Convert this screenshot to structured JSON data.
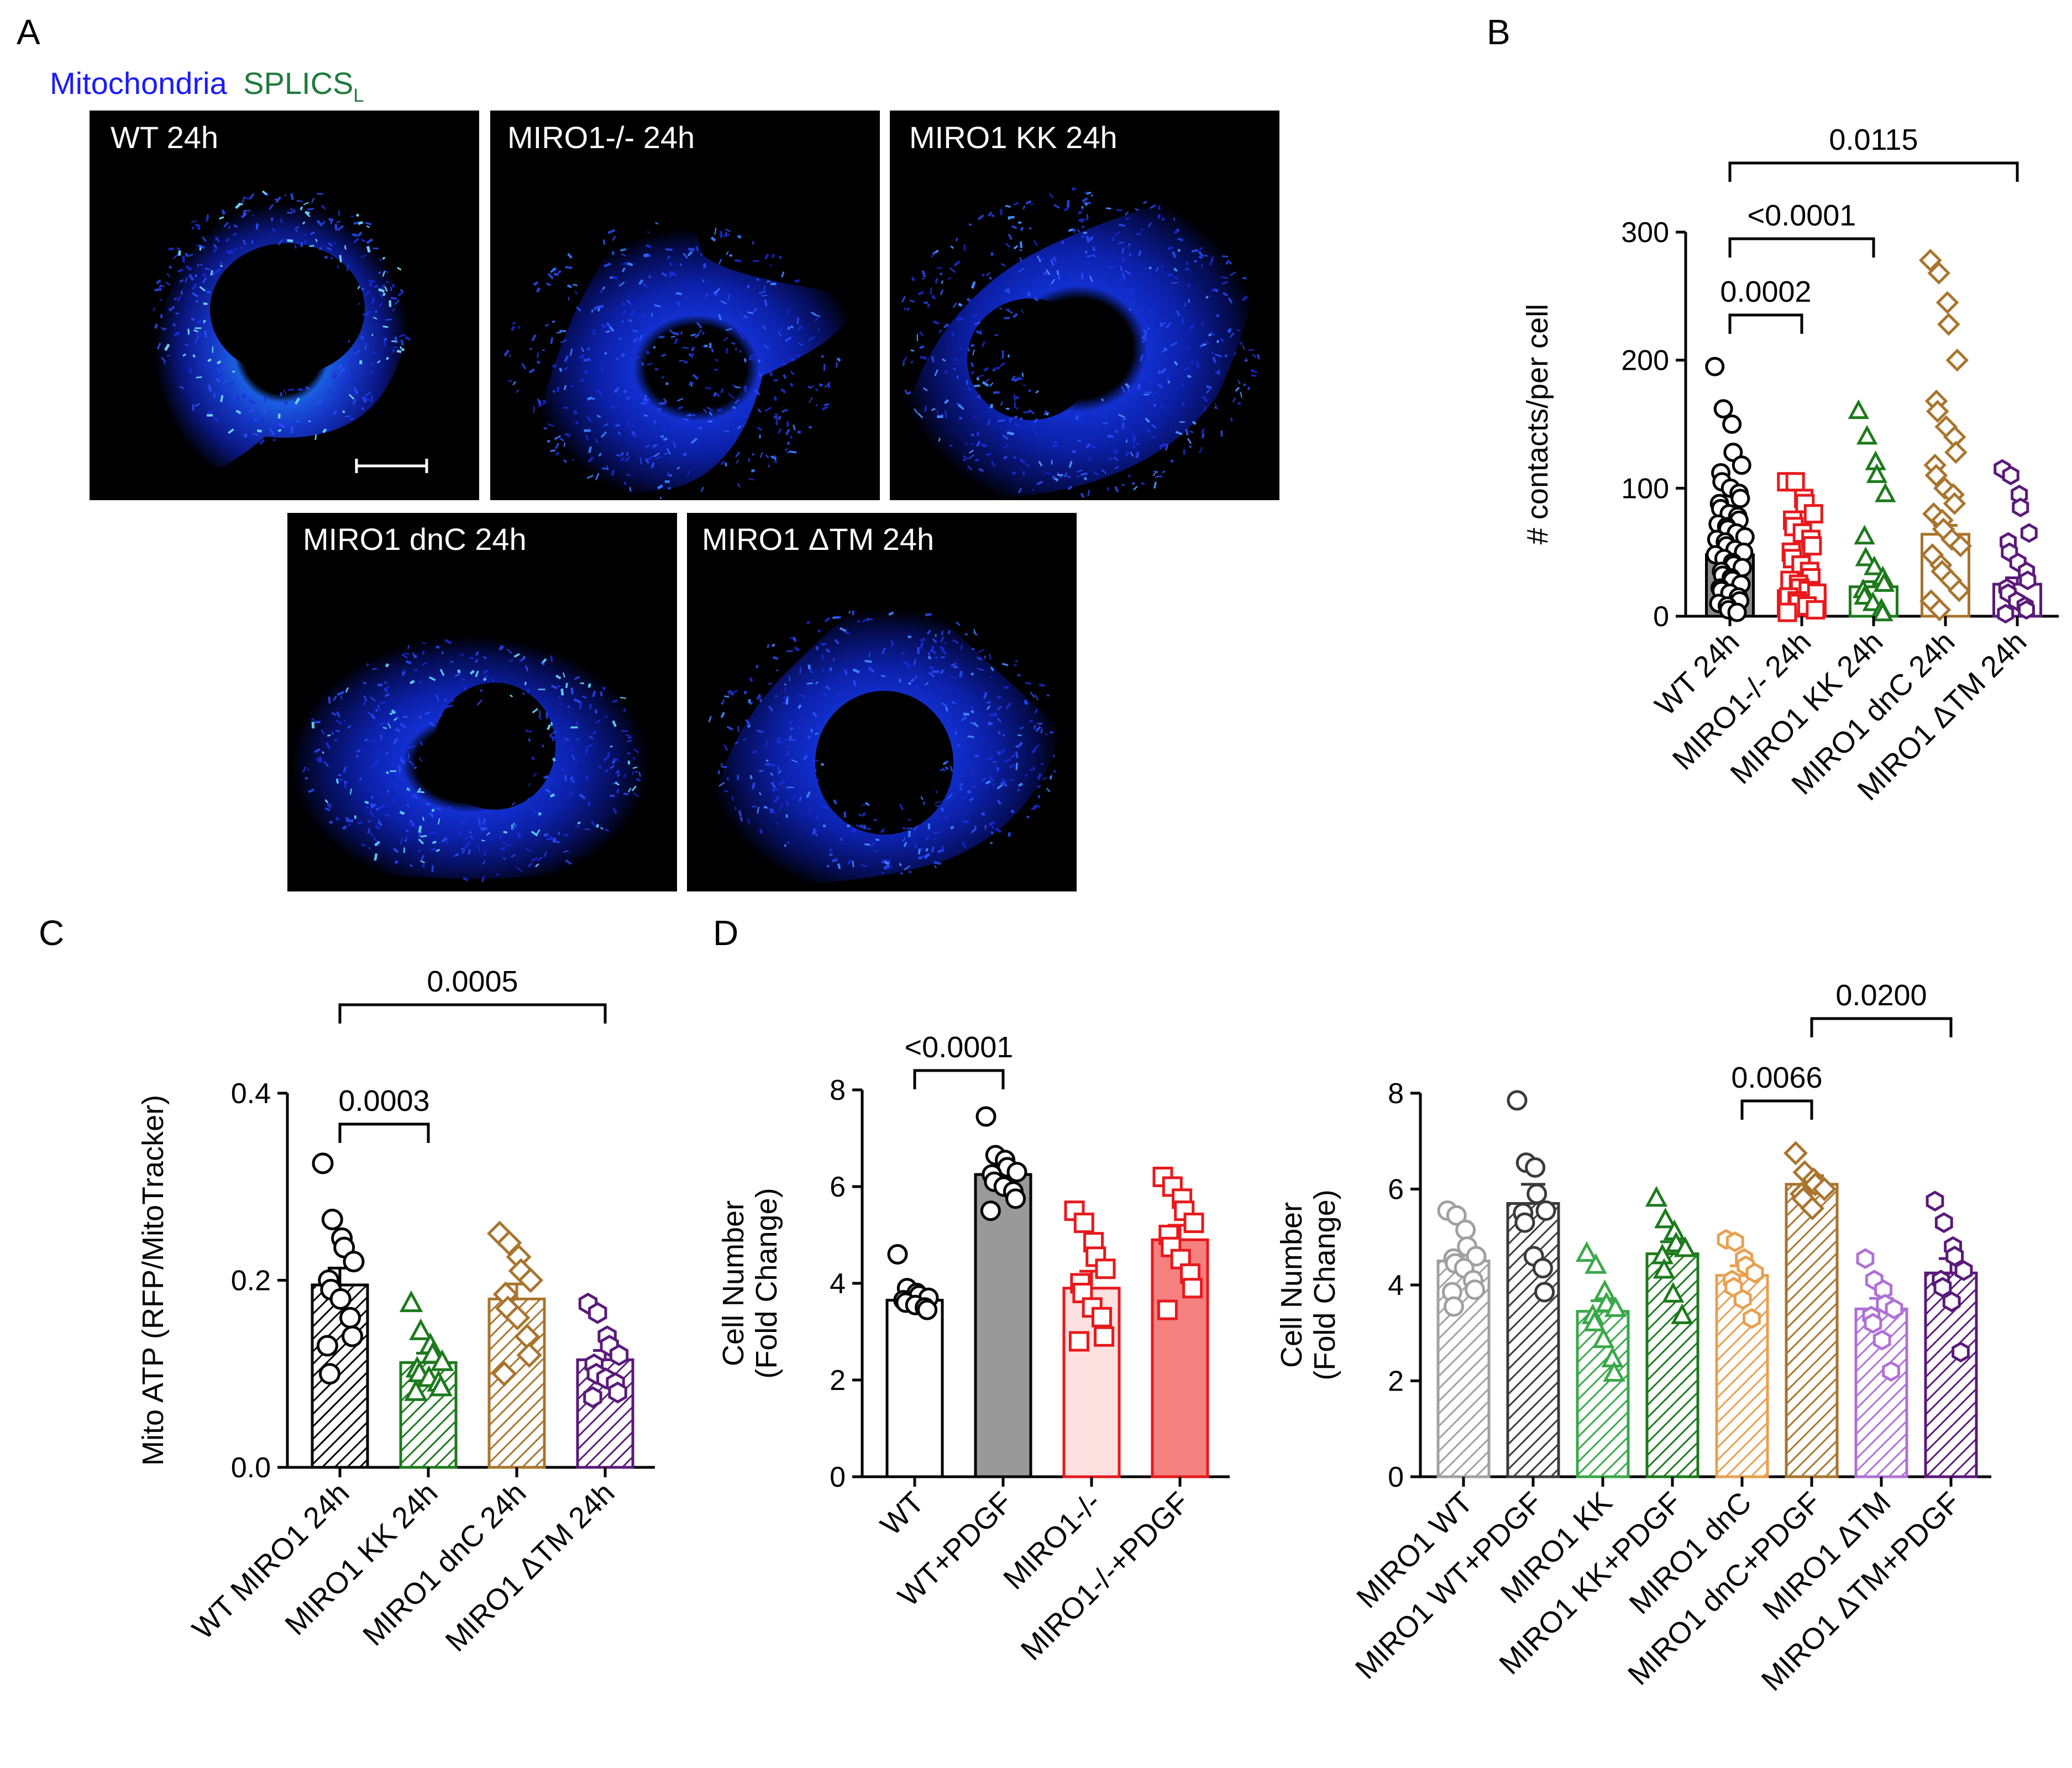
{
  "panel_labels": {
    "a": "A",
    "b": "B",
    "c": "C",
    "d": "D"
  },
  "panel_a": {
    "legend": {
      "mito": "Mitochondria",
      "splics": "SPLICS",
      "splics_sub": "L",
      "mito_color": "#1a1aff",
      "splics_color": "#1f7a3c"
    },
    "images": [
      {
        "label": "WT 24h"
      },
      {
        "label": "MIRO1-/- 24h"
      },
      {
        "label": "MIRO1 KK 24h"
      },
      {
        "label": "MIRO1 dnC 24h"
      },
      {
        "label": "MIRO1 ΔTM 24h"
      }
    ]
  },
  "chart_data": [
    {
      "id": "B",
      "type": "bar",
      "ylabel": "# contacts/per cell",
      "ylim": [
        0,
        300
      ],
      "yticks": [
        0,
        100,
        200,
        300
      ],
      "categories": [
        "WT 24h",
        "MIRO1-/- 24h",
        "MIRO1 KK 24h",
        "MIRO1 dnC 24h",
        "MIRO1 ΔTM 24h"
      ],
      "colors": [
        "#000000",
        "#e8191c",
        "#1d7a1d",
        "#a9742d",
        "#5a1a7a"
      ],
      "fills": [
        "#8a8a8a",
        "#ffffff",
        "#ffffff",
        "#ffffff",
        "#ffffff"
      ],
      "markers": [
        "circle",
        "square",
        "triangle",
        "diamond",
        "hexagon"
      ],
      "values": [
        48,
        20,
        23,
        64,
        25
      ],
      "errors": [
        4,
        3,
        4,
        7,
        5
      ],
      "points": [
        [
          195,
          162,
          150,
          128,
          118,
          112,
          105,
          100,
          96,
          92,
          88,
          84,
          80,
          78,
          75,
          72,
          70,
          68,
          65,
          62,
          60,
          58,
          55,
          52,
          50,
          48,
          45,
          42,
          40,
          38,
          35,
          32,
          30,
          28,
          25,
          22,
          20,
          18,
          15,
          12,
          10,
          8,
          5,
          3
        ],
        [
          105,
          105,
          92,
          88,
          80,
          75,
          70,
          65,
          60,
          55,
          50,
          45,
          40,
          35,
          30,
          28,
          25,
          22,
          20,
          18,
          15,
          12,
          10,
          8,
          5,
          3
        ],
        [
          160,
          140,
          120,
          110,
          95,
          62,
          45,
          38,
          30,
          25,
          20,
          15,
          10,
          5,
          2
        ],
        [
          278,
          268,
          245,
          228,
          200,
          168,
          160,
          148,
          140,
          128,
          118,
          110,
          100,
          95,
          88,
          80,
          75,
          68,
          60,
          55,
          48,
          40,
          35,
          28,
          20,
          12,
          5
        ],
        [
          115,
          110,
          95,
          85,
          65,
          58,
          50,
          42,
          35,
          28,
          22,
          18,
          12,
          8,
          5,
          2
        ]
      ],
      "comparisons": [
        {
          "from": 0,
          "to": 1,
          "label": "0.0002"
        },
        {
          "from": 0,
          "to": 2,
          "label": "<0.0001"
        },
        {
          "from": 0,
          "to": 4,
          "label": "0.0115"
        }
      ]
    },
    {
      "id": "C",
      "type": "bar",
      "ylabel": "Mito ATP (RFP/MitoTracker)",
      "ylim": [
        0,
        0.4
      ],
      "yticks": [
        "0.0",
        "0.2",
        "0.4"
      ],
      "categories": [
        "WT MIRO1 24h",
        "MIRO1 KK 24h",
        "MIRO1 dnC 24h",
        "MIRO1 ΔTM 24h"
      ],
      "colors": [
        "#000000",
        "#1d7a1d",
        "#a9742d",
        "#5a1a7a"
      ],
      "markers": [
        "circle",
        "triangle",
        "diamond",
        "hexagon"
      ],
      "values": [
        0.195,
        0.112,
        0.18,
        0.115
      ],
      "errors": [
        0.018,
        0.01,
        0.016,
        0.01
      ],
      "points": [
        [
          0.325,
          0.265,
          0.245,
          0.235,
          0.22,
          0.2,
          0.19,
          0.18,
          0.16,
          0.14,
          0.13,
          0.1
        ],
        [
          0.175,
          0.145,
          0.13,
          0.12,
          0.112,
          0.105,
          0.1,
          0.095,
          0.09,
          0.085,
          0.08
        ],
        [
          0.25,
          0.24,
          0.225,
          0.21,
          0.2,
          0.185,
          0.17,
          0.16,
          0.14,
          0.12,
          0.1
        ],
        [
          0.175,
          0.165,
          0.14,
          0.13,
          0.12,
          0.11,
          0.1,
          0.095,
          0.09,
          0.08,
          0.075
        ]
      ],
      "comparisons": [
        {
          "from": 0,
          "to": 1,
          "label": "0.0003"
        },
        {
          "from": 0,
          "to": 3,
          "label": "0.0005"
        }
      ]
    },
    {
      "id": "D1",
      "type": "bar",
      "ylabel": "Cell Number",
      "ylabel2": "(Fold Change)",
      "ylim": [
        0,
        8
      ],
      "yticks": [
        0,
        2,
        4,
        6,
        8
      ],
      "categories": [
        "WT",
        "WT+PDGF",
        "MIRO1-/-",
        "MIRO1-/-+PDGF"
      ],
      "colors": [
        "#000000",
        "#000000",
        "#e8191c",
        "#e8191c"
      ],
      "fills": [
        "#ffffff",
        "#999999",
        "#fde0e0",
        "#f58080"
      ],
      "markers": [
        "circle",
        "circle",
        "square",
        "square"
      ],
      "values": [
        3.65,
        6.25,
        3.9,
        4.9
      ],
      "errors": [
        0.1,
        0.2,
        0.35,
        0.3
      ],
      "points": [
        [
          4.6,
          3.9,
          3.8,
          3.75,
          3.7,
          3.65,
          3.6,
          3.55,
          3.5,
          3.45
        ],
        [
          7.45,
          6.65,
          6.55,
          6.4,
          6.3,
          6.25,
          6.1,
          6.0,
          5.9,
          5.75,
          5.5
        ],
        [
          5.5,
          5.25,
          4.85,
          4.55,
          4.3,
          4.0,
          3.8,
          3.5,
          3.3,
          2.9,
          2.8
        ],
        [
          6.2,
          6.0,
          5.75,
          5.5,
          5.25,
          5.0,
          4.75,
          4.5,
          4.2,
          3.9,
          3.45
        ]
      ],
      "comparisons": [
        {
          "from": 0,
          "to": 1,
          "label": "<0.0001"
        }
      ]
    },
    {
      "id": "D2",
      "type": "bar",
      "ylabel": "Cell Number",
      "ylabel2": "(Fold Change)",
      "ylim": [
        0,
        8
      ],
      "yticks": [
        0,
        2,
        4,
        6,
        8
      ],
      "categories": [
        "MIRO1 WT",
        "MIRO1 WT+PDGF",
        "MIRO1 KK",
        "MIRO1 KK+PDGF",
        "MIRO1 dnC",
        "MIRO1 dnC+PDGF",
        "MIRO1 ΔTM",
        "MIRO1 ΔTM+PDGF"
      ],
      "colors": [
        "#a0a0a0",
        "#3a3a3a",
        "#3aa84a",
        "#1d7a1d",
        "#e8a050",
        "#a9742d",
        "#b070d8",
        "#5a1a7a"
      ],
      "markers": [
        "circle",
        "circle",
        "triangle",
        "triangle",
        "hexagon",
        "diamond",
        "hexagon",
        "hexagon"
      ],
      "values": [
        4.5,
        5.7,
        3.45,
        4.65,
        4.2,
        6.1,
        3.5,
        4.25
      ],
      "errors": [
        0.2,
        0.4,
        0.22,
        0.25,
        0.2,
        0.18,
        0.22,
        0.3
      ],
      "points": [
        [
          5.55,
          5.45,
          5.15,
          4.8,
          4.6,
          4.55,
          4.45,
          4.35,
          4.1,
          3.9,
          3.85,
          3.55
        ],
        [
          7.85,
          6.55,
          6.45,
          5.9,
          5.55,
          5.5,
          5.3,
          4.6,
          4.35,
          3.85
        ],
        [
          4.65,
          4.4,
          3.85,
          3.6,
          3.5,
          3.35,
          3.2,
          2.85,
          2.45,
          2.15
        ],
        [
          5.8,
          5.35,
          5.1,
          4.85,
          4.75,
          4.6,
          4.3,
          3.8,
          3.35
        ],
        [
          4.95,
          4.9,
          4.55,
          4.4,
          4.25,
          4.1,
          3.95,
          3.7,
          3.3
        ],
        [
          6.75,
          6.35,
          6.2,
          6.1,
          6.0,
          5.9,
          5.8,
          5.6
        ],
        [
          4.55,
          4.1,
          3.9,
          3.6,
          3.5,
          3.35,
          3.2,
          2.85,
          2.2
        ],
        [
          5.75,
          5.3,
          4.8,
          4.6,
          4.3,
          4.1,
          3.95,
          3.65,
          2.6
        ]
      ],
      "comparisons": [
        {
          "from": 4,
          "to": 5,
          "label": "0.0066"
        },
        {
          "from": 5,
          "to": 7,
          "label": "0.0200"
        }
      ]
    }
  ]
}
